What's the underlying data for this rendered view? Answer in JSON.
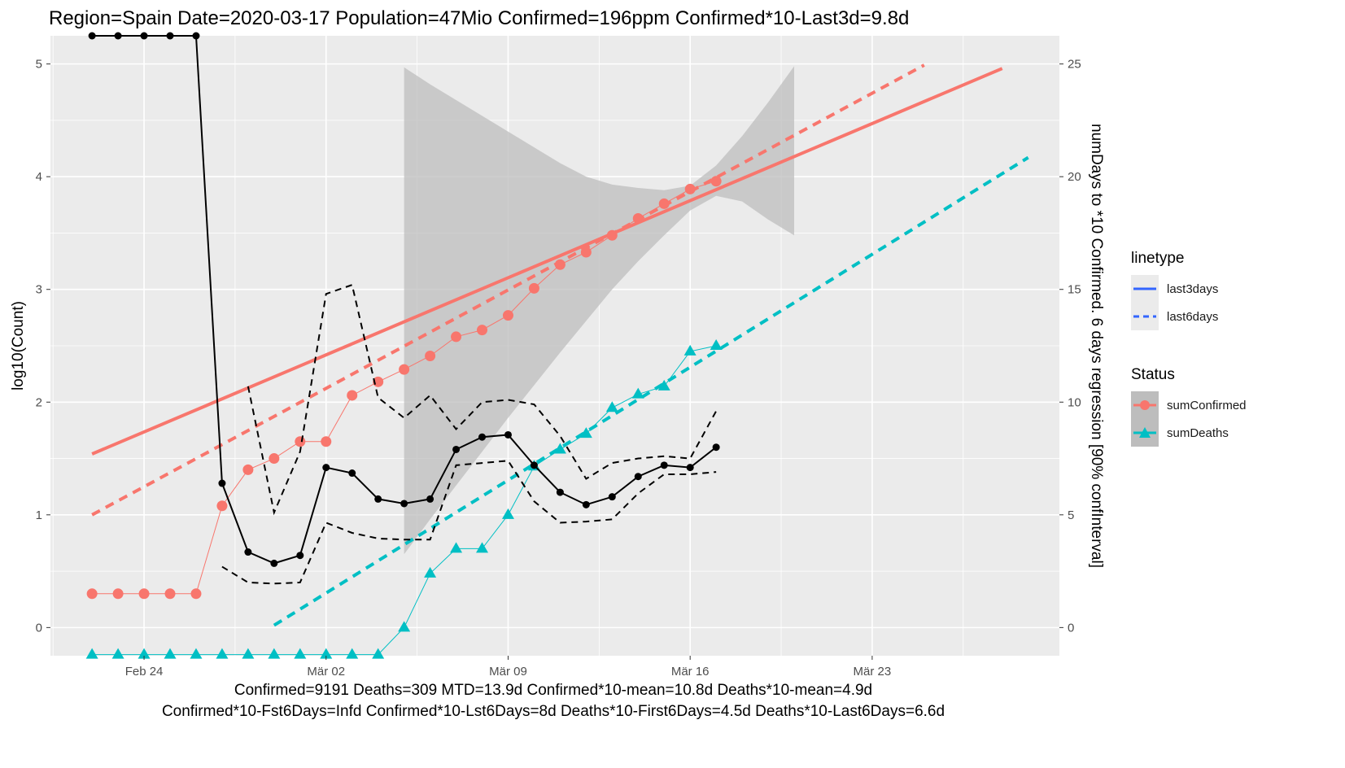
{
  "chart_data": {
    "type": "line",
    "title": "Region=Spain Date=2020-03-17  Population=47Mio Confirmed=196ppm  Confirmed*10-Last3d=9.8d",
    "ylabel": "log10(Count)",
    "y2label": "numDays to *10 Confirmed. 6 days regression [90% confInterval]",
    "footer": [
      "Confirmed=9191 Deaths=309  MTD=13.9d   Confirmed*10-mean=10.8d  Deaths*10-mean=4.9d",
      "Confirmed*10-Fst6Days=Infd  Confirmed*10-Lst6Days=8d    Deaths*10-First6Days=4.5d  Deaths*10-Last6Days=6.6d"
    ],
    "x_ticks": [
      {
        "day": 3,
        "label": "Feb 24"
      },
      {
        "day": 10,
        "label": "Mär 02"
      },
      {
        "day": 17,
        "label": "Mär 09"
      },
      {
        "day": 24,
        "label": "Mär 16"
      },
      {
        "day": 31,
        "label": "Mär 23"
      }
    ],
    "xlim": [
      -0.6,
      38.2
    ],
    "ylim": [
      -0.25,
      5.25
    ],
    "y_ticks": [
      0,
      1,
      2,
      3,
      4,
      5
    ],
    "y2_ticks": [
      0,
      5,
      10,
      15,
      20,
      25
    ],
    "y2_scale": 5,
    "legend": {
      "position": "right",
      "linetype_title": "linetype",
      "linetype_items": [
        "last3days",
        "last6days"
      ],
      "status_title": "Status",
      "status_items": [
        "sumConfirmed",
        "sumDeaths"
      ]
    },
    "colors": {
      "confirmed": "#F8766D",
      "deaths": "#00BFC4",
      "legend_line": "#3366FF",
      "ribbon": "#BDBDBD",
      "panel": "#EBEBEB",
      "days": "#000000"
    },
    "series": [
      {
        "name": "sumConfirmed",
        "x": [
          1,
          2,
          3,
          4,
          5,
          6,
          7,
          8,
          9,
          10,
          11,
          12,
          13,
          14,
          15,
          16,
          17,
          18,
          19,
          20,
          21,
          22,
          23,
          24,
          25
        ],
        "y": [
          0.3,
          0.3,
          0.3,
          0.3,
          0.3,
          1.08,
          1.4,
          1.5,
          1.65,
          1.65,
          2.06,
          2.18,
          2.29,
          2.41,
          2.58,
          2.64,
          2.77,
          3.01,
          3.22,
          3.33,
          3.48,
          3.63,
          3.76,
          3.89,
          3.96
        ]
      },
      {
        "name": "sumDeaths",
        "x": [
          1,
          2,
          3,
          4,
          5,
          6,
          7,
          8,
          9,
          10,
          11,
          12,
          13,
          14,
          15,
          16,
          17,
          18,
          19,
          20,
          21,
          22,
          23,
          24,
          25
        ],
        "y": [
          -0.24,
          -0.24,
          -0.24,
          -0.24,
          -0.24,
          -0.24,
          -0.24,
          -0.24,
          -0.24,
          -0.24,
          -0.24,
          -0.24,
          0.0,
          0.48,
          0.7,
          0.7,
          1.0,
          1.43,
          1.58,
          1.72,
          1.95,
          2.07,
          2.14,
          2.45,
          2.5
        ]
      }
    ],
    "days_to_x10": {
      "x": [
        1,
        2,
        3,
        4,
        5,
        6,
        7,
        8,
        9,
        10,
        11,
        12,
        13,
        14,
        15,
        16,
        17,
        18,
        19,
        20,
        21,
        22,
        23,
        24,
        25
      ],
      "y": [
        26.3,
        26.3,
        26.3,
        26.3,
        26.3,
        6.4,
        3.35,
        2.85,
        3.2,
        7.1,
        6.85,
        5.7,
        5.5,
        5.7,
        7.9,
        8.45,
        8.55,
        7.2,
        6.0,
        5.45,
        5.8,
        6.7,
        7.2,
        7.1,
        8.0
      ],
      "upper": [
        null,
        null,
        null,
        null,
        null,
        null,
        10.7,
        5.1,
        7.8,
        14.8,
        15.2,
        10.2,
        9.3,
        10.3,
        8.8,
        10.0,
        10.1,
        9.9,
        8.5,
        6.6,
        7.3,
        7.5,
        7.6,
        7.5,
        9.6
      ],
      "lower": [
        null,
        null,
        null,
        null,
        null,
        2.7,
        2.0,
        1.95,
        2.0,
        4.65,
        4.2,
        3.95,
        3.9,
        3.9,
        7.2,
        7.3,
        7.4,
        5.6,
        4.65,
        4.7,
        4.8,
        5.95,
        6.8,
        6.8,
        6.9
      ]
    },
    "ribbon": {
      "x": [
        13,
        14,
        15,
        16,
        17,
        18,
        19,
        20,
        21,
        22,
        23,
        24,
        25,
        26,
        27,
        28
      ],
      "upper": [
        4.97,
        4.82,
        4.68,
        4.54,
        4.4,
        4.26,
        4.12,
        4.0,
        3.93,
        3.9,
        3.88,
        3.92,
        4.1,
        4.36,
        4.66,
        4.98
      ],
      "lower": [
        0.65,
        0.96,
        1.26,
        1.56,
        1.86,
        2.15,
        2.44,
        2.72,
        3.0,
        3.25,
        3.48,
        3.7,
        3.83,
        3.78,
        3.62,
        3.48
      ]
    },
    "regressions": [
      {
        "series": "sumConfirmed",
        "linetype": "last3days",
        "x": [
          1,
          36
        ],
        "y": [
          1.54,
          4.96
        ]
      },
      {
        "series": "sumConfirmed",
        "linetype": "last6days",
        "x": [
          1,
          33
        ],
        "y": [
          1.0,
          4.99
        ]
      },
      {
        "series": "sumDeaths",
        "linetype": "last6days",
        "x": [
          8,
          37
        ],
        "y": [
          0.02,
          4.17
        ]
      }
    ]
  }
}
